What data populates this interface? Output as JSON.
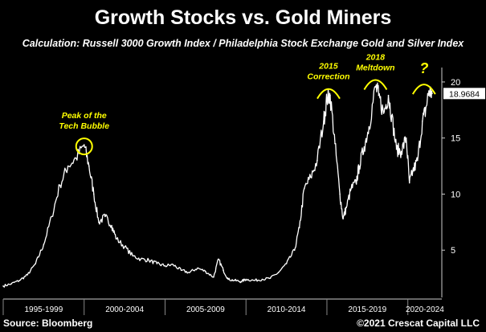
{
  "title": "Growth Stocks vs. Gold Miners",
  "subtitle": "Calculation: Russell 3000 Growth Index / Philadelphia Stock Exchange Gold and Silver Index",
  "source": "Source: Bloomberg",
  "credit": "©2021 Crescat Capital LLC",
  "colors": {
    "background": "#000000",
    "line": "#ffffff",
    "annotation": "#ffff00",
    "last_value_box": "#ffffff"
  },
  "chart_data": {
    "type": "line",
    "title": "Growth Stocks vs. Gold Miners",
    "xlabel": "",
    "ylabel": "",
    "x_tick_labels": [
      "1995-1999",
      "2000-2004",
      "2005-2009",
      "2010-2014",
      "2015-2019",
      "2020-2024"
    ],
    "y_ticks": [
      5,
      10,
      15,
      20
    ],
    "ylim": [
      1,
      21
    ],
    "xlim": [
      1995.0,
      2022.0
    ],
    "grid": false,
    "last_value": "18.9684",
    "series": [
      {
        "x": [
          1995.0,
          1995.5,
          1996.0,
          1996.5,
          1997.0,
          1997.5,
          1998.0,
          1998.5,
          1999.0,
          1999.5,
          2000.0,
          2000.3,
          2000.6,
          2000.9,
          2001.3,
          2001.7,
          2002.0,
          2002.5,
          2003.0,
          2003.5,
          2004.0,
          2004.5,
          2005.0,
          2005.5,
          2006.0,
          2006.5,
          2007.0,
          2007.5,
          2008.0,
          2008.3,
          2008.6,
          2008.9,
          2009.3,
          2009.7,
          2010.0,
          2010.5,
          2011.0,
          2011.5,
          2012.0,
          2012.5,
          2013.0,
          2013.3,
          2013.6,
          2014.0,
          2014.4,
          2014.8,
          2015.0,
          2015.2,
          2015.5,
          2015.8,
          2016.0,
          2016.2,
          2016.5,
          2016.8,
          2017.0,
          2017.3,
          2017.6,
          2018.0,
          2018.2,
          2018.5,
          2018.8,
          2019.0,
          2019.3,
          2019.6,
          2019.9,
          2020.1,
          2020.3,
          2020.6,
          2020.9,
          2021.1,
          2021.3,
          2021.5
        ],
        "values": [
          1.8,
          2.0,
          2.3,
          2.8,
          3.8,
          5.5,
          8.0,
          10.8,
          12.5,
          13.2,
          14.4,
          12.5,
          10.0,
          7.5,
          8.0,
          7.2,
          6.0,
          5.3,
          4.5,
          4.2,
          4.1,
          3.8,
          3.6,
          3.7,
          3.2,
          3.0,
          3.4,
          3.1,
          2.6,
          4.2,
          3.2,
          2.4,
          2.3,
          2.2,
          2.4,
          2.3,
          2.4,
          2.5,
          3.0,
          3.8,
          5.0,
          7.0,
          10.5,
          11.5,
          13.0,
          16.5,
          18.5,
          18.8,
          14.5,
          10.0,
          7.8,
          8.8,
          10.5,
          11.0,
          12.5,
          14.2,
          16.0,
          19.6,
          18.8,
          17.2,
          18.8,
          17.0,
          14.0,
          13.8,
          15.0,
          11.0,
          12.0,
          13.0,
          16.5,
          17.5,
          19.2,
          18.97
        ]
      }
    ],
    "annotations": [
      {
        "text_lines": [
          "Peak of the",
          "Tech Bubble"
        ],
        "x": 2000.0,
        "y": 14.4,
        "shape": "circle"
      },
      {
        "text_lines": [
          "2015",
          "Correction"
        ],
        "x": 2015.1,
        "y": 18.8,
        "shape": "arc"
      },
      {
        "text_lines": [
          "2018",
          "Meltdown"
        ],
        "x": 2018.0,
        "y": 19.6,
        "shape": "arc"
      },
      {
        "text_lines": [
          "?"
        ],
        "x": 2021.0,
        "y": 19.2,
        "shape": "arc"
      }
    ]
  }
}
